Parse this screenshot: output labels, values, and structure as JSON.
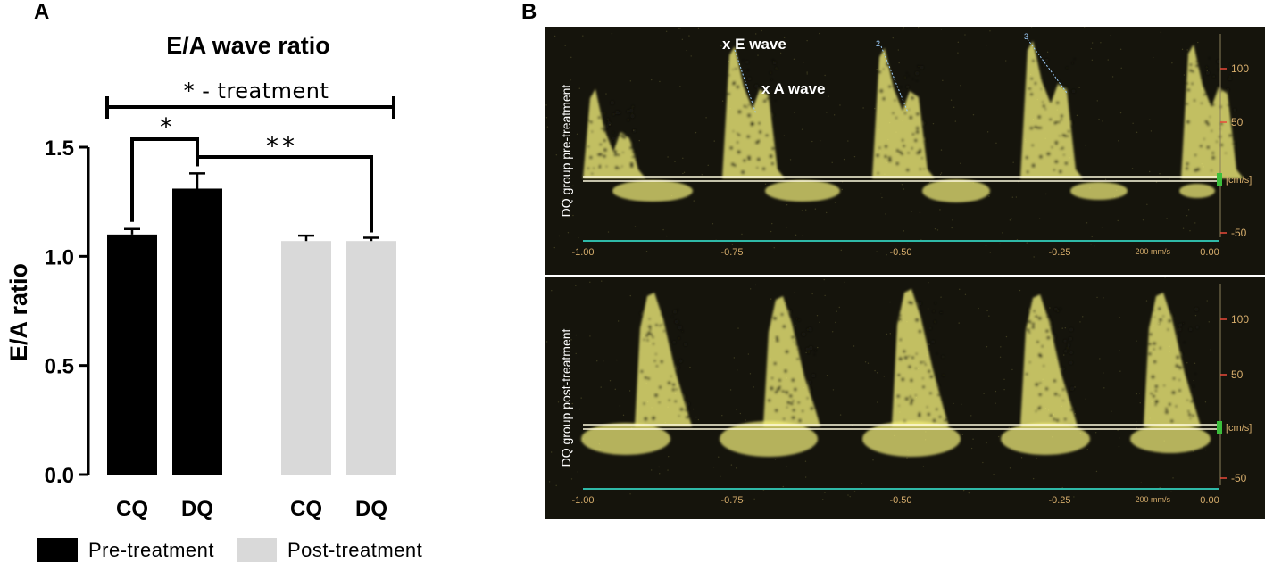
{
  "panels": {
    "a_label": "A",
    "b_label": "B"
  },
  "chart_data": {
    "type": "bar",
    "title": "E/A wave ratio",
    "ylabel": "E/A ratio",
    "xlabel": "",
    "ylim": [
      0,
      1.5
    ],
    "yticks": [
      "0.0",
      "0.5",
      "1.0",
      "1.5"
    ],
    "categories": [
      "CQ",
      "DQ",
      "CQ",
      "DQ"
    ],
    "bars": [
      {
        "category": "CQ",
        "group": "Pre-treatment",
        "value": 1.1,
        "error": 0.025
      },
      {
        "category": "DQ",
        "group": "Pre-treatment",
        "value": 1.31,
        "error": 0.07
      },
      {
        "category": "CQ",
        "group": "Post-treatment",
        "value": 1.07,
        "error": 0.025
      },
      {
        "category": "DQ",
        "group": "Post-treatment",
        "value": 1.07,
        "error": 0.015
      }
    ],
    "series": [
      {
        "name": "Pre-treatment",
        "color": "#000000"
      },
      {
        "name": "Post-treatment",
        "color": "#d9d9d9"
      }
    ],
    "annotations": {
      "treatment_bracket": "* - treatment",
      "cq_vs_dq_pre": "*",
      "dq_pre_vs_post": "**"
    },
    "legend": {
      "position": "bottom-left",
      "items": [
        "Pre-treatment",
        "Post-treatment"
      ]
    },
    "grid": false
  },
  "doppler": {
    "colors": {
      "signal": "#f2ee7a",
      "background": "#15140c",
      "baseline": "#fffbe0",
      "axis_line": "#2fb9a8",
      "scale_text": "#d6ad6c",
      "tick_red": "#e84a3a",
      "marker": "#3cbf3c"
    },
    "x_ticks": [
      "-1.00",
      "-0.75",
      "-0.50",
      "-0.25",
      "0.00"
    ],
    "speed_label": "200 mm/s",
    "unit_label": "[cm/s]",
    "top": {
      "side_label": "DQ group pre-treatment",
      "y_ticks": [
        "100",
        "50",
        "-50"
      ],
      "e_wave_label": "x E wave",
      "a_wave_label": "x A wave",
      "marker_numbers": [
        "2",
        "3"
      ]
    },
    "bottom": {
      "side_label": "DQ group post-treatment",
      "y_ticks": [
        "100",
        "50",
        "-50"
      ]
    }
  }
}
